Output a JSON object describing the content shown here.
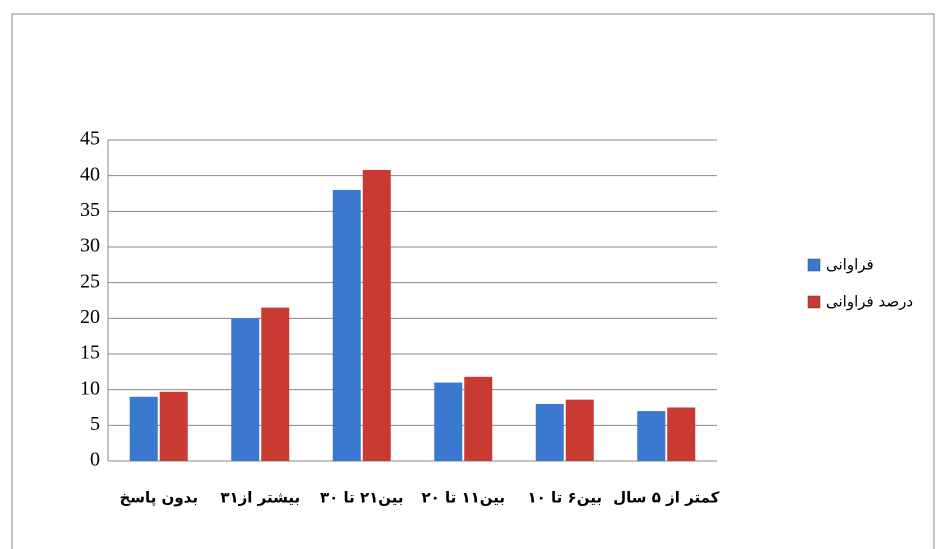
{
  "chart_data": {
    "type": "bar",
    "categories": [
      "بدون پاسخ",
      "بیشتر از۳۱",
      "بین۲۱ تا ۳۰",
      "بین۱۱ تا ۲۰",
      "بین۶ تا ۱۰",
      "کمتر از ۵ سال"
    ],
    "series": [
      {
        "name": "فراوانی",
        "color": "#3b78cf",
        "values": [
          9,
          20,
          38,
          11,
          8,
          7
        ]
      },
      {
        "name": "درصد فراوانی",
        "color": "#c83a32",
        "values": [
          9.7,
          21.5,
          40.8,
          11.8,
          8.6,
          7.5
        ]
      }
    ],
    "ylim": [
      0,
      45
    ],
    "yticks": [
      0,
      5,
      10,
      15,
      20,
      25,
      30,
      35,
      40,
      45
    ],
    "grid": true,
    "legend": "right"
  }
}
